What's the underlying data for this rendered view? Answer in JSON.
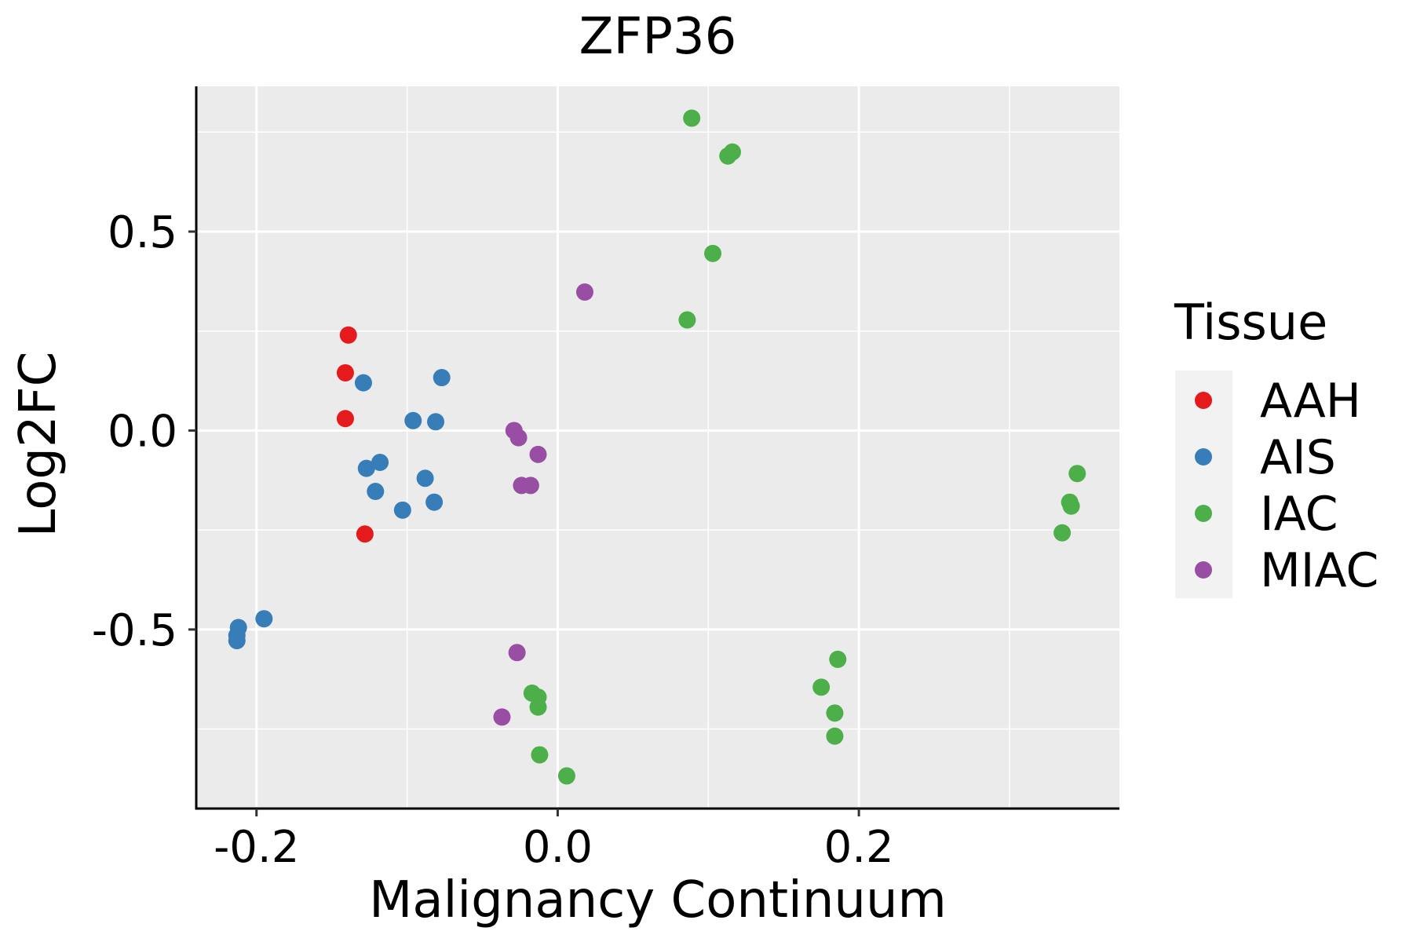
{
  "chart_data": {
    "type": "scatter",
    "title": "ZFP36",
    "xlabel": "Malignancy Continuum",
    "ylabel": "Log2FC",
    "xlim": [
      -0.24,
      0.373
    ],
    "ylim": [
      -0.95,
      0.865
    ],
    "x_ticks": [
      -0.2,
      0.0,
      0.2
    ],
    "x_tick_labels": [
      "-0.2",
      "0.0",
      "0.2"
    ],
    "y_ticks": [
      -0.5,
      0.0,
      0.5
    ],
    "y_tick_labels": [
      "-0.5",
      "0.0",
      "0.5"
    ],
    "x_minor": [
      -0.3,
      -0.1,
      0.1,
      0.3
    ],
    "y_minor": [
      -0.75,
      -0.25,
      0.25,
      0.75
    ],
    "grid": true,
    "legend": {
      "title": "Tissue",
      "position": "right"
    },
    "series": [
      {
        "name": "AAH",
        "color": "#E41A1C",
        "points": [
          {
            "x": -0.139,
            "y": 0.24
          },
          {
            "x": -0.141,
            "y": 0.145
          },
          {
            "x": -0.141,
            "y": 0.03
          },
          {
            "x": -0.128,
            "y": -0.26
          }
        ]
      },
      {
        "name": "AIS",
        "color": "#377EB8",
        "points": [
          {
            "x": -0.129,
            "y": 0.12
          },
          {
            "x": -0.077,
            "y": 0.133
          },
          {
            "x": -0.096,
            "y": 0.025
          },
          {
            "x": -0.081,
            "y": 0.022
          },
          {
            "x": -0.127,
            "y": -0.095
          },
          {
            "x": -0.118,
            "y": -0.08
          },
          {
            "x": -0.121,
            "y": -0.153
          },
          {
            "x": -0.088,
            "y": -0.12
          },
          {
            "x": -0.103,
            "y": -0.2
          },
          {
            "x": -0.082,
            "y": -0.18
          },
          {
            "x": -0.195,
            "y": -0.473
          },
          {
            "x": -0.212,
            "y": -0.495
          },
          {
            "x": -0.213,
            "y": -0.515
          },
          {
            "x": -0.213,
            "y": -0.528
          }
        ]
      },
      {
        "name": "IAC",
        "color": "#4DAF4A",
        "points": [
          {
            "x": 0.089,
            "y": 0.785
          },
          {
            "x": 0.116,
            "y": 0.7
          },
          {
            "x": 0.113,
            "y": 0.69
          },
          {
            "x": 0.103,
            "y": 0.445
          },
          {
            "x": 0.086,
            "y": 0.278
          },
          {
            "x": 0.345,
            "y": -0.108
          },
          {
            "x": 0.34,
            "y": -0.18
          },
          {
            "x": 0.341,
            "y": -0.19
          },
          {
            "x": 0.335,
            "y": -0.257
          },
          {
            "x": 0.186,
            "y": -0.575
          },
          {
            "x": 0.175,
            "y": -0.645
          },
          {
            "x": 0.184,
            "y": -0.71
          },
          {
            "x": 0.184,
            "y": -0.768
          },
          {
            "x": -0.017,
            "y": -0.66
          },
          {
            "x": -0.013,
            "y": -0.67
          },
          {
            "x": -0.013,
            "y": -0.695
          },
          {
            "x": -0.012,
            "y": -0.815
          },
          {
            "x": 0.006,
            "y": -0.868
          }
        ]
      },
      {
        "name": "MIAC",
        "color": "#984EA3",
        "points": [
          {
            "x": 0.018,
            "y": 0.348
          },
          {
            "x": -0.029,
            "y": 0.0
          },
          {
            "x": -0.026,
            "y": -0.018
          },
          {
            "x": -0.013,
            "y": -0.06
          },
          {
            "x": -0.024,
            "y": -0.138
          },
          {
            "x": -0.018,
            "y": -0.138
          },
          {
            "x": -0.027,
            "y": -0.558
          },
          {
            "x": -0.037,
            "y": -0.72
          }
        ]
      }
    ]
  }
}
